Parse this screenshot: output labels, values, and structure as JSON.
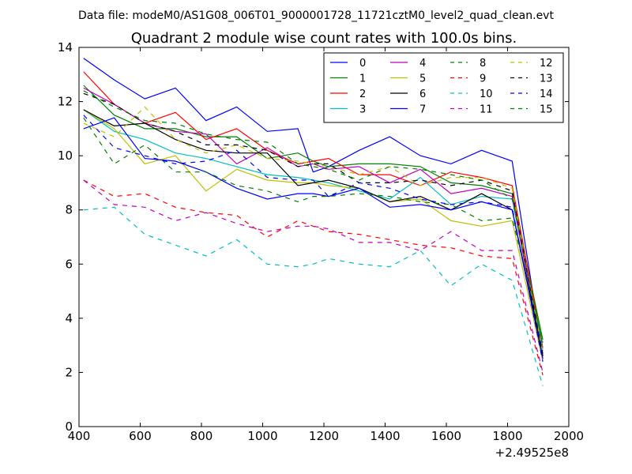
{
  "chart_data": {
    "type": "line",
    "suptitle": "Data file: modeM0/AS1G08_006T01_9000001728_11721cztM0_level2_quad_clean.evt",
    "title": "Quadrant 2 module wise count rates with 100.0s bins.",
    "xlabel": "",
    "ylabel": "",
    "x_offset_label": "+2.49525e8",
    "xlim": [
      400,
      2000
    ],
    "ylim": [
      0,
      14
    ],
    "x_ticks": [
      400,
      600,
      800,
      1000,
      1200,
      1400,
      1600,
      1800,
      2000
    ],
    "x_tick_labels": [
      "400",
      "600",
      "800",
      "1000",
      "1200",
      "1400",
      "1600",
      "1800",
      "2000"
    ],
    "y_ticks": [
      0,
      2,
      4,
      6,
      8,
      10,
      12,
      14
    ],
    "y_tick_labels": [
      "0",
      "2",
      "4",
      "6",
      "8",
      "10",
      "12",
      "14"
    ],
    "legend_position": "top-right",
    "x": [
      415,
      515,
      615,
      715,
      815,
      915,
      1015,
      1115,
      1165,
      1215,
      1315,
      1415,
      1515,
      1615,
      1715,
      1815,
      1915
    ],
    "series": [
      {
        "name": "0",
        "color": "#0000ff",
        "style": "solid",
        "values": [
          13.6,
          12.8,
          12.1,
          12.5,
          11.3,
          11.8,
          10.9,
          11.0,
          9.4,
          9.6,
          10.2,
          10.7,
          10.0,
          9.7,
          10.2,
          9.8,
          2.6
        ]
      },
      {
        "name": "1",
        "color": "#008000",
        "style": "solid",
        "values": [
          12.6,
          11.5,
          11.0,
          11.0,
          10.7,
          10.7,
          9.9,
          10.1,
          9.8,
          9.6,
          9.7,
          9.7,
          9.6,
          9.0,
          8.9,
          8.6,
          3.2
        ]
      },
      {
        "name": "2",
        "color": "#ff0000",
        "style": "solid",
        "values": [
          13.1,
          11.9,
          11.2,
          11.6,
          10.6,
          11.0,
          10.2,
          9.7,
          9.8,
          9.9,
          9.3,
          9.3,
          8.9,
          9.4,
          9.2,
          8.9,
          2.9
        ]
      },
      {
        "name": "3",
        "color": "#00bfbf",
        "style": "solid",
        "values": [
          11.7,
          10.9,
          10.6,
          10.1,
          9.9,
          9.6,
          9.3,
          9.2,
          9.1,
          9.0,
          8.7,
          8.4,
          9.2,
          8.2,
          8.5,
          8.4,
          2.8
        ]
      },
      {
        "name": "4",
        "color": "#bf00bf",
        "style": "solid",
        "values": [
          12.5,
          11.9,
          11.2,
          10.9,
          10.8,
          9.7,
          10.3,
          9.6,
          9.7,
          9.5,
          9.6,
          9.0,
          9.5,
          8.6,
          8.8,
          8.5,
          2.5
        ]
      },
      {
        "name": "5",
        "color": "#bfbf00",
        "style": "solid",
        "values": [
          11.7,
          11.0,
          9.7,
          10.0,
          8.7,
          9.5,
          9.1,
          9.0,
          9.0,
          8.9,
          8.8,
          8.3,
          8.4,
          7.6,
          7.4,
          7.6,
          2.4
        ]
      },
      {
        "name": "6",
        "color": "#000000",
        "style": "solid",
        "values": [
          11.7,
          11.1,
          11.2,
          10.6,
          10.2,
          10.1,
          10.1,
          8.9,
          9.0,
          9.1,
          8.8,
          8.3,
          8.5,
          8.0,
          8.6,
          8.0,
          2.7
        ]
      },
      {
        "name": "7",
        "color": "#0000ff",
        "style": "solid",
        "values": [
          11.0,
          11.4,
          9.9,
          9.8,
          9.4,
          8.8,
          8.4,
          8.6,
          8.6,
          8.5,
          8.8,
          8.1,
          8.2,
          8.0,
          8.3,
          8.0,
          2.5
        ]
      },
      {
        "name": "8",
        "color": "#008000",
        "style": "dashed",
        "values": [
          11.4,
          9.7,
          10.4,
          9.4,
          9.4,
          8.9,
          8.7,
          8.3,
          8.5,
          8.5,
          8.6,
          8.5,
          8.3,
          8.2,
          7.6,
          7.7,
          3.1
        ]
      },
      {
        "name": "9",
        "color": "#ff0000",
        "style": "dashed",
        "values": [
          9.1,
          8.5,
          8.6,
          8.1,
          7.9,
          7.8,
          7.0,
          7.6,
          7.4,
          7.2,
          7.1,
          6.9,
          6.7,
          6.6,
          6.3,
          6.2,
          1.9
        ]
      },
      {
        "name": "10",
        "color": "#00bfbf",
        "style": "dashed",
        "values": [
          8.0,
          8.1,
          7.1,
          6.7,
          6.3,
          6.9,
          6.0,
          5.9,
          6.0,
          6.2,
          6.0,
          5.9,
          6.5,
          5.2,
          6.0,
          5.4,
          1.5
        ]
      },
      {
        "name": "11",
        "color": "#bf00bf",
        "style": "dashed",
        "values": [
          9.1,
          8.2,
          8.1,
          7.6,
          7.9,
          7.5,
          7.2,
          7.4,
          7.4,
          7.3,
          6.8,
          6.8,
          6.5,
          7.2,
          6.5,
          6.5,
          2.0
        ]
      },
      {
        "name": "12",
        "color": "#bfbf00",
        "style": "dashed",
        "values": [
          11.2,
          10.7,
          11.8,
          10.6,
          10.1,
          10.4,
          9.9,
          9.8,
          9.7,
          9.6,
          9.3,
          9.6,
          8.9,
          9.2,
          9.2,
          8.8,
          2.7
        ]
      },
      {
        "name": "13",
        "color": "#000000",
        "style": "dashed",
        "values": [
          12.3,
          11.9,
          11.2,
          10.9,
          10.4,
          10.4,
          10.2,
          9.6,
          9.7,
          9.7,
          9.0,
          9.0,
          9.1,
          8.9,
          9.1,
          8.7,
          2.6
        ]
      },
      {
        "name": "14",
        "color": "#0000ff",
        "style": "dashed",
        "values": [
          11.5,
          10.3,
          10.0,
          9.7,
          9.8,
          10.2,
          9.2,
          9.1,
          9.1,
          8.5,
          9.0,
          8.8,
          8.4,
          8.2,
          8.3,
          8.1,
          2.4
        ]
      },
      {
        "name": "15",
        "color": "#008000",
        "style": "dashed",
        "values": [
          12.4,
          11.8,
          11.3,
          11.2,
          10.8,
          10.6,
          10.5,
          9.7,
          9.6,
          9.5,
          9.1,
          9.6,
          9.5,
          9.3,
          9.1,
          8.4,
          3.0
        ]
      }
    ]
  }
}
